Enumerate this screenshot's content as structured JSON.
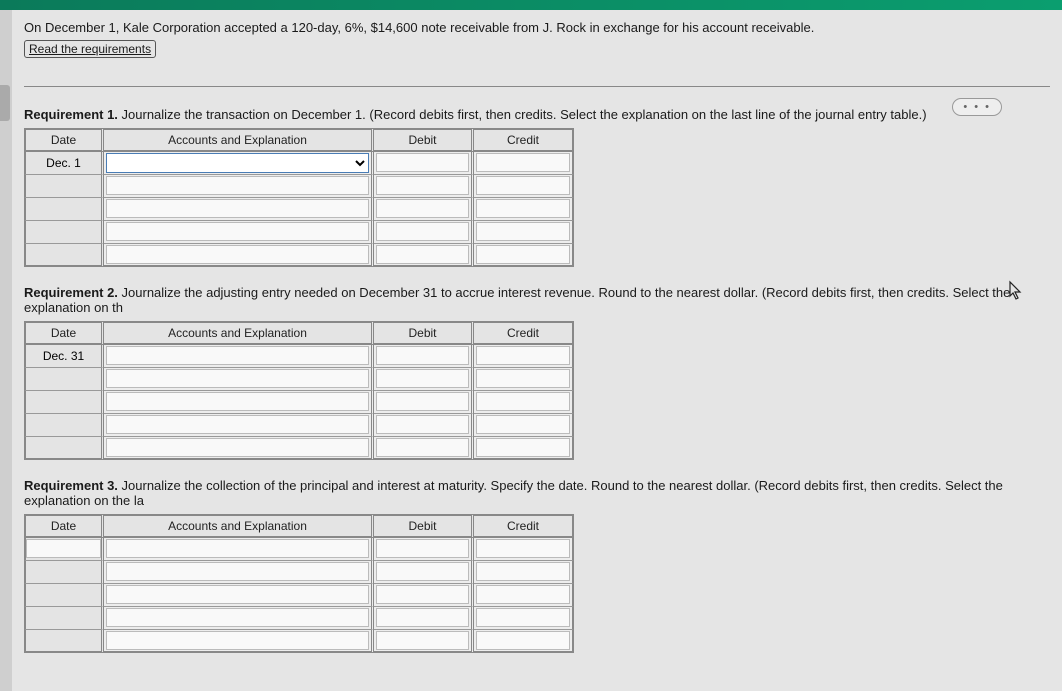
{
  "problem": {
    "text": "On December 1, Kale Corporation accepted a 120-day, 6%, $14,600 note receivable from J. Rock in exchange for his account receivable.",
    "read_link": "Read the requirements"
  },
  "dots": "• • •",
  "requirements": [
    {
      "label": "Requirement 1.",
      "text": " Journalize the transaction on December 1. (Record debits first, then credits. Select the explanation on the last line of the journal entry table.)",
      "date_prefill": "Dec. 1",
      "has_date_input": false,
      "first_row_select": true
    },
    {
      "label": "Requirement 2.",
      "text": " Journalize the adjusting entry needed on December 31 to accrue interest revenue. Round to the nearest dollar. (Record debits first, then credits. Select the explanation on th",
      "date_prefill": "Dec. 31",
      "has_date_input": false,
      "first_row_select": false
    },
    {
      "label": "Requirement 3.",
      "text": " Journalize the collection of the principal and interest at maturity. Specify the date. Round to the nearest dollar. (Record debits first, then credits. Select the explanation on the la",
      "date_prefill": "",
      "has_date_input": true,
      "first_row_select": false
    }
  ],
  "headers": {
    "date": "Date",
    "accounts": "Accounts and Explanation",
    "debit": "Debit",
    "credit": "Credit"
  }
}
